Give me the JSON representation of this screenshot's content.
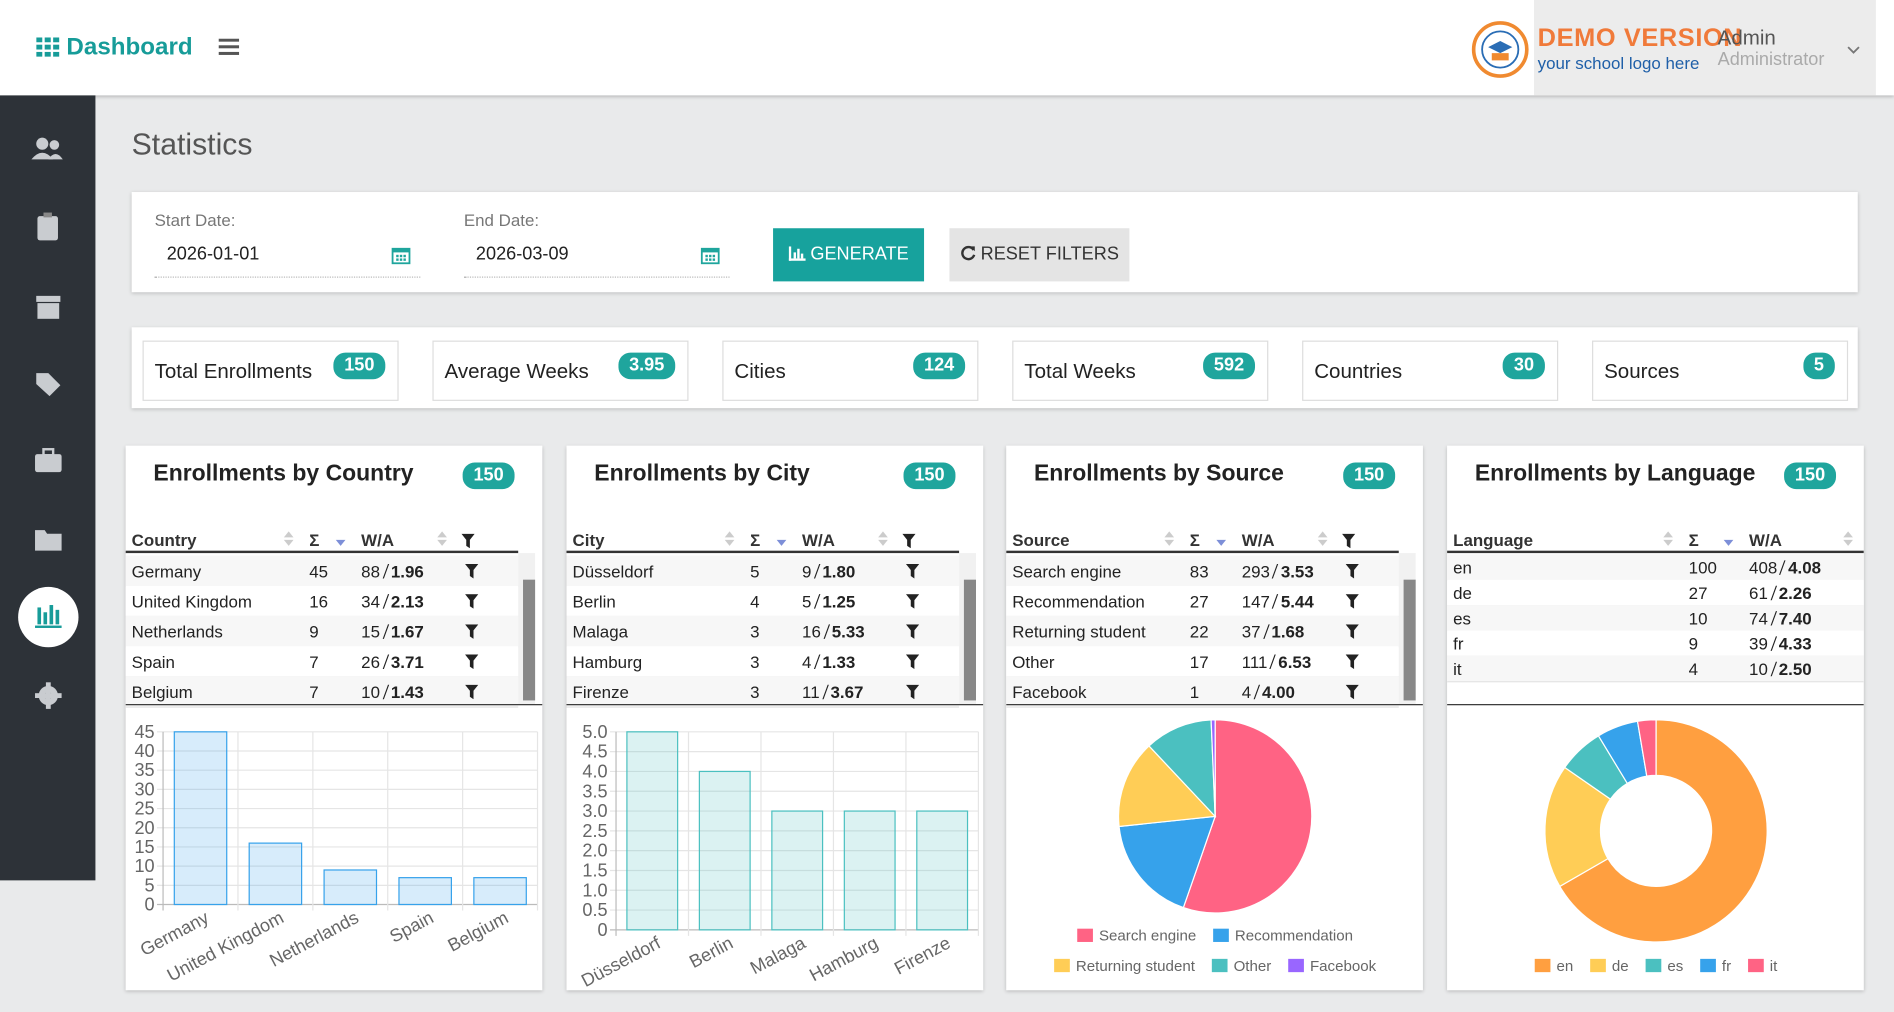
{
  "header": {
    "brand": "Dashboard",
    "logo_title": "DEMO VERSION",
    "logo_subtitle": "your school logo here",
    "user_name": "Admin",
    "user_role": "Administrator"
  },
  "page_title": "Statistics",
  "filters": {
    "start_label": "Start Date:",
    "start_value": "2026-01-01",
    "end_label": "End Date:",
    "end_value": "2026-03-09",
    "generate": "GENERATE",
    "reset": "RESET FILTERS"
  },
  "stats": [
    {
      "label": "Total Enrollments",
      "value": 150
    },
    {
      "label": "Average Weeks",
      "value": 3.95
    },
    {
      "label": "Cities",
      "value": 124
    },
    {
      "label": "Total Weeks",
      "value": 592
    },
    {
      "label": "Countries",
      "value": 30
    },
    {
      "label": "Sources",
      "value": 5
    }
  ],
  "panels": [
    {
      "title": "Enrollments by Country",
      "badge": 150,
      "columns": [
        "Country",
        "Σ",
        "W/A"
      ],
      "rows": [
        [
          "Germany",
          45,
          88,
          "1.96"
        ],
        [
          "United Kingdom",
          16,
          34,
          "2.13"
        ],
        [
          "Netherlands",
          9,
          15,
          "1.67"
        ],
        [
          "Spain",
          7,
          26,
          "3.71"
        ],
        [
          "Belgium",
          7,
          10,
          "1.43"
        ]
      ]
    },
    {
      "title": "Enrollments by City",
      "badge": 150,
      "columns": [
        "City",
        "Σ",
        "W/A"
      ],
      "rows": [
        [
          "Düsseldorf",
          5,
          9,
          "1.80"
        ],
        [
          "Berlin",
          4,
          5,
          "1.25"
        ],
        [
          "Malaga",
          3,
          16,
          "5.33"
        ],
        [
          "Hamburg",
          3,
          4,
          "1.33"
        ],
        [
          "Firenze",
          3,
          11,
          "3.67"
        ]
      ]
    },
    {
      "title": "Enrollments by Source",
      "badge": 150,
      "columns": [
        "Source",
        "Σ",
        "W/A"
      ],
      "rows": [
        [
          "Search engine",
          83,
          293,
          "3.53"
        ],
        [
          "Recommendation",
          27,
          147,
          "5.44"
        ],
        [
          "Returning student",
          22,
          37,
          "1.68"
        ],
        [
          "Other",
          17,
          111,
          "6.53"
        ],
        [
          "Facebook",
          1,
          4,
          "4.00"
        ]
      ]
    },
    {
      "title": "Enrollments by Language",
      "badge": 150,
      "columns": [
        "Language",
        "Σ",
        "W/A"
      ],
      "rows": [
        [
          "en",
          100,
          408,
          "4.08"
        ],
        [
          "de",
          27,
          61,
          "2.26"
        ],
        [
          "es",
          10,
          74,
          "7.40"
        ],
        [
          "fr",
          9,
          39,
          "4.33"
        ],
        [
          "it",
          4,
          10,
          "2.50"
        ]
      ]
    }
  ],
  "chart_data": [
    {
      "type": "bar",
      "categories": [
        "Germany",
        "United Kingdom",
        "Netherlands",
        "Spain",
        "Belgium"
      ],
      "values": [
        45,
        16,
        9,
        7,
        7
      ],
      "color": "#36a2eb",
      "ylim": [
        0,
        45
      ],
      "yticks": [
        0,
        5,
        10,
        15,
        20,
        25,
        30,
        35,
        40,
        45
      ],
      "grid": true
    },
    {
      "type": "bar",
      "categories": [
        "Düsseldorf",
        "Berlin",
        "Malaga",
        "Hamburg",
        "Firenze"
      ],
      "values": [
        5,
        4,
        3,
        3,
        3
      ],
      "color": "#4bc0c0",
      "ylim": [
        0,
        5
      ],
      "yticks": [
        0,
        0.5,
        {
          "value": 1,
          "label": "1.0"
        },
        1.5,
        {
          "value": 2,
          "label": "2.0"
        },
        2.5,
        {
          "value": 3,
          "label": "3.0"
        },
        3.5,
        {
          "value": 4,
          "label": "4.0"
        },
        4.5,
        {
          "value": 5,
          "label": "5.0"
        }
      ],
      "grid": true
    },
    {
      "type": "pie",
      "categories": [
        "Search engine",
        "Recommendation",
        "Returning student",
        "Other",
        "Facebook"
      ],
      "values": [
        83,
        27,
        22,
        17,
        1
      ],
      "colors": [
        "#ff6384",
        "#36a2eb",
        "#ffcd56",
        "#4bc0c0",
        "#9966ff"
      ]
    },
    {
      "type": "doughnut",
      "categories": [
        "en",
        "de",
        "es",
        "fr",
        "it"
      ],
      "values": [
        100,
        27,
        10,
        9,
        4
      ],
      "colors": [
        "#ff9f40",
        "#ffcd56",
        "#4bc0c0",
        "#36a2eb",
        "#ff6384"
      ]
    }
  ]
}
